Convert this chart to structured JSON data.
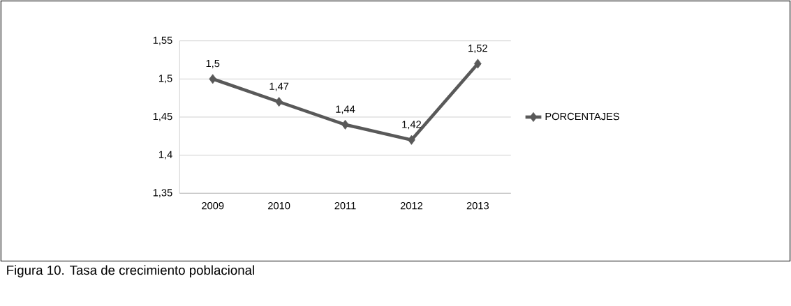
{
  "chart_data": {
    "type": "line",
    "categories": [
      "2009",
      "2010",
      "2011",
      "2012",
      "2013"
    ],
    "series": [
      {
        "name": "PORCENTAJES",
        "color": "#595959",
        "values": [
          1.5,
          1.47,
          1.44,
          1.42,
          1.52
        ]
      }
    ],
    "value_labels": [
      "1,5",
      "1,47",
      "1,44",
      "1,42",
      "1,52"
    ],
    "ylim": [
      1.35,
      1.55
    ],
    "yticks": [
      {
        "value": 1.35,
        "label": "1,35"
      },
      {
        "value": 1.4,
        "label": "1,4"
      },
      {
        "value": 1.45,
        "label": "1,45"
      },
      {
        "value": 1.5,
        "label": "1,5"
      },
      {
        "value": 1.55,
        "label": "1,55"
      }
    ],
    "grid": "y",
    "legend": "right",
    "marker": "diamond",
    "line_style": "solid",
    "annotations": [
      "Figura 10. Tasa de crecimiento poblacional"
    ]
  }
}
